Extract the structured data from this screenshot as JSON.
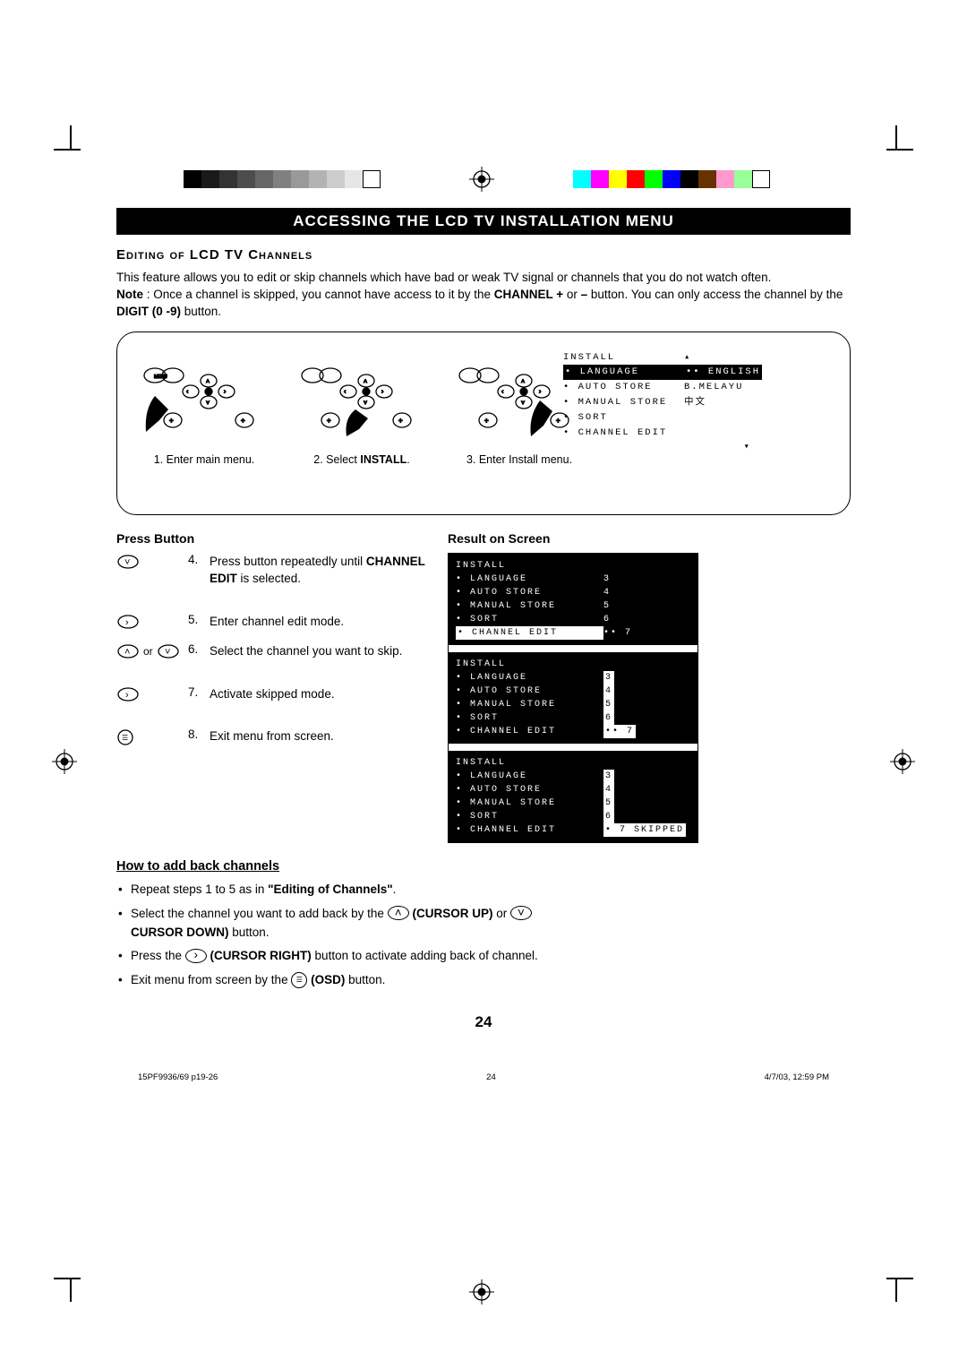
{
  "colors": {
    "grayscale": [
      "#000000",
      "#1a1a1a",
      "#333333",
      "#4d4d4d",
      "#666666",
      "#808080",
      "#999999",
      "#b3b3b3",
      "#cccccc",
      "#e6e6e6",
      "#ffffff"
    ],
    "colorbar": [
      "#00ffff",
      "#ff00ff",
      "#ffff00",
      "#ff0000",
      "#00ff00",
      "#0000ff",
      "#000000",
      "#663300",
      "#ff99cc",
      "#99ff99",
      "#ffffff"
    ]
  },
  "title": "Accessing the LCD TV Installation Menu",
  "subtitle": "Editing of LCD TV Channels",
  "intro_line1": "This feature allows you to edit or skip channels which have bad or weak TV signal or channels that you do not watch often.",
  "intro_note_label": "Note",
  "intro_note_a": " : Once a channel is skipped, you cannot have access to it by the ",
  "intro_note_b": "CHANNEL +",
  "intro_note_c": " or ",
  "intro_note_d": "–",
  "intro_note_e": " button. You can only access the channel by the ",
  "intro_note_f": "DIGIT (0 -9)",
  "intro_note_g": " button.",
  "diagram": {
    "cap1_a": "1. Enter main menu.",
    "cap2_a": "2.  Select ",
    "cap2_b": "INSTALL",
    "cap2_c": ".",
    "cap3_a": "3.  Enter Install menu.",
    "osd": {
      "hdr": "INSTALL",
      "rows": [
        {
          "l": "• LANGUAGE",
          "r": "•• ENGLISH",
          "hl": true,
          "rhl": true
        },
        {
          "l": "• AUTO STORE",
          "r": "B.MELAYU"
        },
        {
          "l": "• MANUAL STORE",
          "r": "中文"
        },
        {
          "l": "• SORT",
          "r": ""
        },
        {
          "l": "• CHANNEL EDIT",
          "r": ""
        }
      ]
    }
  },
  "press_button_hdr": "Press Button",
  "result_hdr": "Result on Screen",
  "steps": [
    {
      "num": "4.",
      "txt_a": "Press button repeatedly until ",
      "txt_b": "CHANNEL EDIT",
      "txt_c": " is selected.",
      "btn": "down"
    },
    {
      "num": "5.",
      "txt_a": "Enter channel edit mode.",
      "btn": "right"
    },
    {
      "num": "6.",
      "txt_a": "Select the channel you want to skip.",
      "btn": "updown",
      "or": " or "
    },
    {
      "num": "7.",
      "txt_a": "Activate skipped mode.",
      "btn": "right"
    },
    {
      "num": "8.",
      "txt_a": "Exit menu from screen.",
      "btn": "osd"
    }
  ],
  "screens": [
    {
      "hdr": "INSTALL",
      "rows": [
        {
          "l": "• LANGUAGE",
          "r": "3"
        },
        {
          "l": "• AUTO STORE",
          "r": "4"
        },
        {
          "l": "• MANUAL STORE",
          "r": "5"
        },
        {
          "l": "• SORT",
          "r": "6"
        },
        {
          "l": "• CHANNEL EDIT",
          "r": "•• 7",
          "hl": true
        }
      ]
    },
    {
      "hdr": "INSTALL",
      "rows": [
        {
          "l": "• LANGUAGE",
          "r": "3",
          "rhl": true
        },
        {
          "l": "• AUTO STORE",
          "r": "4",
          "rhl": true
        },
        {
          "l": "• MANUAL STORE",
          "r": "5",
          "rhl": true
        },
        {
          "l": "• SORT",
          "r": "6",
          "rhl": true
        },
        {
          "l": "• CHANNEL EDIT",
          "r": "•• 7",
          "rhl": true
        }
      ]
    },
    {
      "hdr": "INSTALL",
      "rows": [
        {
          "l": "• LANGUAGE",
          "r": "3",
          "rhl": true
        },
        {
          "l": "• AUTO STORE",
          "r": "4",
          "rhl": true
        },
        {
          "l": "• MANUAL STORE",
          "r": "5",
          "rhl": true
        },
        {
          "l": "• SORT",
          "r": "6",
          "rhl": true
        },
        {
          "l": "• CHANNEL EDIT",
          "r": "• 7 SKIPPED",
          "rhl": true
        }
      ]
    }
  ],
  "howto_hdr": "How to add back channels",
  "howto": {
    "i1_a": "Repeat steps 1 to 5 as in ",
    "i1_b": "\"Editing of Channels\"",
    "i1_c": ".",
    "i2_a": "Select the channel you want to add back by the ",
    "i2_b": "(CURSOR UP)",
    "i2_c": "  or ",
    "i2_d": "CURSOR DOWN)",
    "i2_e": " button.",
    "i3_a": "Press the ",
    "i3_b": "(CURSOR RIGHT)",
    "i3_c": " button to activate adding back of channel.",
    "i4_a": "Exit menu from screen by the ",
    "i4_b": "(OSD)",
    "i4_c": " button."
  },
  "pagenum": "24",
  "footer": {
    "left": "15PF9936/69 p19-26",
    "mid": "24",
    "right": "4/7/03, 12:59 PM"
  }
}
